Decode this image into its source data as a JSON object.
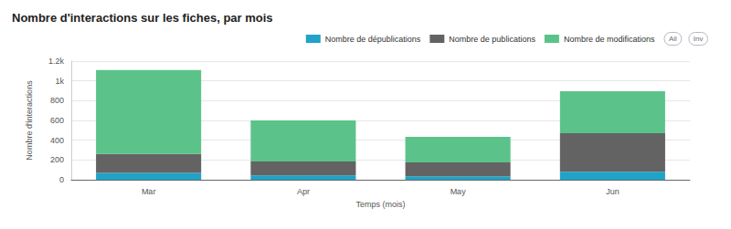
{
  "chart_data": {
    "type": "bar",
    "title": "Nombre d'interactions sur les fiches, par mois",
    "x_label": "Temps (mois)",
    "y_label": "Nombre d'interactions",
    "categories": [
      "Mar",
      "Apr",
      "May",
      "Jun"
    ],
    "series": [
      {
        "name": "Nombre de dépublications",
        "color": "#1fa3c7",
        "values": [
          70,
          45,
          35,
          80
        ]
      },
      {
        "name": "Nombre de publications",
        "color": "#636363",
        "values": [
          190,
          140,
          140,
          390
        ]
      },
      {
        "name": "Nombre de modifications",
        "color": "#5bc389",
        "values": [
          850,
          415,
          260,
          425
        ]
      }
    ],
    "ylim": [
      0,
      1200
    ],
    "yticks": [
      0,
      200,
      400,
      600,
      800,
      {
        "value": 1000,
        "label": "1k"
      },
      {
        "value": 1200,
        "label": "1.2k"
      }
    ],
    "stacked": true,
    "grid": true,
    "legend": "top-right",
    "legend_selector": [
      "All",
      "Inv"
    ]
  }
}
